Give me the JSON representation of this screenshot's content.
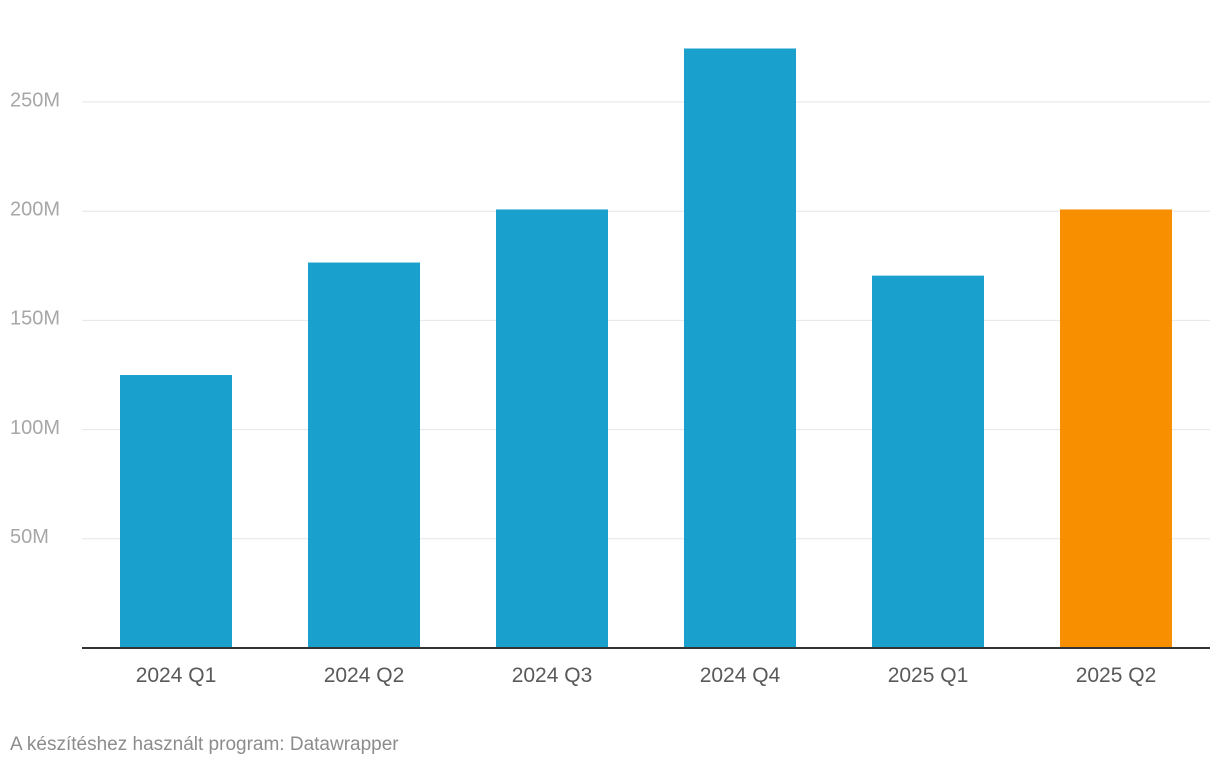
{
  "chart_data": {
    "type": "bar",
    "categories": [
      "2024 Q1",
      "2024 Q2",
      "2024 Q3",
      "2024 Q4",
      "2025 Q1",
      "2025 Q2"
    ],
    "values": [
      125000000,
      176500000,
      200800000,
      274500000,
      170500000,
      200800000
    ],
    "bar_colors": [
      "#1aa0cc",
      "#1aa0cc",
      "#1aa0cc",
      "#1aa0cc",
      "#1aa0cc",
      "#f88f00"
    ],
    "y_ticks": [
      50000000,
      100000000,
      150000000,
      200000000,
      250000000
    ],
    "y_tick_labels": [
      "50M",
      "100M",
      "150M",
      "200M",
      "250M"
    ],
    "ylim": [
      0,
      250000000
    ],
    "grid": true,
    "title": "",
    "xlabel": "",
    "ylabel": ""
  },
  "footer": {
    "credit": "A készítéshez használt program: Datawrapper"
  }
}
